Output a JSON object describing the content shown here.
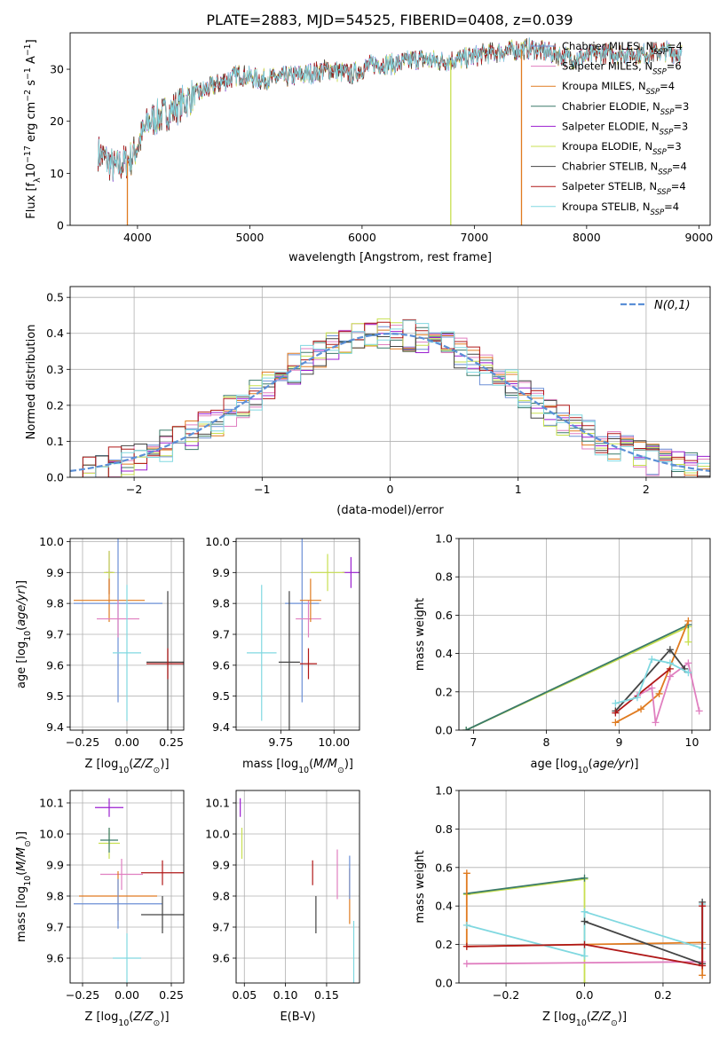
{
  "figure": {
    "title": "PLATE=2883, MJD=54525, FIBERID=0408, z=0.039"
  },
  "colors": {
    "Chabrier MILES": "#6b8fd6",
    "Salpeter MILES": "#e07fc0",
    "Kroupa MILES": "#e07b20",
    "Chabrier ELODIE": "#3b7a6a",
    "Salpeter ELODIE": "#9b1fd0",
    "Kroupa ELODIE": "#c8e050",
    "Chabrier STELIB": "#444444",
    "Salpeter STELIB": "#b01818",
    "Kroupa STELIB": "#80d8e0",
    "normal": "#5b8fd6"
  },
  "chart_data": [
    {
      "id": "spectrum",
      "type": "line",
      "xlabel": "wavelength [Angstrom, rest frame]",
      "ylabel": "Flux [f_λ10^-17 erg cm^-2 s^-1 A^-1]",
      "xlim": [
        3400,
        9100
      ],
      "ylim": [
        0,
        37
      ],
      "xticks": [
        4000,
        5000,
        6000,
        7000,
        8000,
        9000
      ],
      "yticks": [
        0,
        10,
        20,
        30
      ],
      "legend_position": "right",
      "series": [
        {
          "name": "Chabrier MILES, N_SSP=4",
          "label": "Chabrier MILES, N",
          "sub": "SSP",
          "suffix": "=4"
        },
        {
          "name": "Salpeter MILES, N_SSP=6",
          "label": "Salpeter MILES, N",
          "sub": "SSP",
          "suffix": "=6"
        },
        {
          "name": "Kroupa MILES, N_SSP=4",
          "label": "Kroupa MILES, N",
          "sub": "SSP",
          "suffix": "=4"
        },
        {
          "name": "Chabrier ELODIE, N_SSP=3",
          "label": "Chabrier ELODIE, N",
          "sub": "SSP",
          "suffix": "=3"
        },
        {
          "name": "Salpeter ELODIE, N_SSP=3",
          "label": "Salpeter ELODIE, N",
          "sub": "SSP",
          "suffix": "=3"
        },
        {
          "name": "Kroupa ELODIE, N_SSP=3",
          "label": "Kroupa ELODIE, N",
          "sub": "SSP",
          "suffix": "=3"
        },
        {
          "name": "Chabrier STELIB, N_SSP=4",
          "label": "Chabrier STELIB, N",
          "sub": "SSP",
          "suffix": "=4"
        },
        {
          "name": "Salpeter STELIB, N_SSP=4",
          "label": "Salpeter STELIB, N",
          "sub": "SSP",
          "suffix": "=4"
        },
        {
          "name": "Kroupa STELIB, N_SSP=4",
          "label": "Kroupa STELIB, N",
          "sub": "SSP",
          "suffix": "=4"
        }
      ],
      "continuum": {
        "x": [
          3650,
          3800,
          3950,
          4100,
          4300,
          4500,
          4700,
          4900,
          5100,
          5300,
          5500,
          5700,
          5900,
          6100,
          6300,
          6500,
          6700,
          6900,
          7100,
          7300,
          7500,
          7700,
          7900,
          8100,
          8300,
          8500,
          8700,
          8850
        ],
        "y": [
          14,
          11,
          13,
          20,
          22,
          25,
          27,
          29,
          28,
          28.5,
          29,
          30,
          29,
          31,
          31,
          32,
          31.5,
          32,
          33,
          33.5,
          34,
          33,
          32,
          33,
          33,
          33,
          33.5,
          33
        ]
      },
      "dropouts": [
        {
          "series": "Kroupa MILES",
          "x": 3910
        },
        {
          "series": "Kroupa ELODIE",
          "x": 6790
        },
        {
          "series": "Kroupa MILES",
          "x": 7420
        }
      ]
    },
    {
      "id": "residual-hist",
      "type": "histogram",
      "xlabel": "(data-model)/error",
      "ylabel": "Normed distribution",
      "xlim": [
        -2.5,
        2.5
      ],
      "ylim": [
        0,
        0.53
      ],
      "xticks": [
        -2,
        -1,
        0,
        1,
        2
      ],
      "yticks": [
        0.0,
        0.1,
        0.2,
        0.3,
        0.4,
        0.5
      ],
      "legend": {
        "label": "N(0,1)",
        "position": "top-right"
      },
      "bin_width": 0.1,
      "bin_start": -2.5,
      "series": [
        "Chabrier MILES",
        "Salpeter MILES",
        "Kroupa MILES",
        "Chabrier ELODIE",
        "Salpeter ELODIE",
        "Kroupa ELODIE",
        "Chabrier STELIB",
        "Salpeter STELIB",
        "Kroupa STELIB"
      ]
    },
    {
      "id": "age-vs-Z",
      "type": "scatter",
      "xlabel": "Z [log10(Z/Z⊙)]",
      "ylabel": "age [log10(age/yr)]",
      "xlim": [
        -0.32,
        0.32
      ],
      "ylim": [
        9.39,
        10.01
      ],
      "xticks": [
        -0.25,
        0.0,
        0.25
      ],
      "xtick_labels": [
        "−0.25",
        "0.00",
        "0.25"
      ],
      "yticks": [
        9.4,
        9.5,
        9.6,
        9.7,
        9.8,
        9.9,
        10.0
      ],
      "points": [
        {
          "series": "Salpeter ELODIE",
          "x": -0.1,
          "xerr": 0.02,
          "y": 9.9,
          "yerr": 0.07
        },
        {
          "series": "Kroupa ELODIE",
          "x": -0.1,
          "xerr": 0.03,
          "y": 9.9,
          "yerr": 0.07
        },
        {
          "series": "Kroupa MILES",
          "x": -0.1,
          "xerr": 0.2,
          "y": 9.81,
          "yerr": 0.07
        },
        {
          "series": "Chabrier MILES",
          "x": -0.05,
          "xerr": 0.25,
          "y": 9.8,
          "yerr": 0.32
        },
        {
          "series": "Salpeter MILES",
          "x": -0.05,
          "xerr": 0.12,
          "y": 9.75,
          "yerr": 0.06
        },
        {
          "series": "Kroupa STELIB",
          "x": 0.0,
          "xerr": 0.08,
          "y": 9.64,
          "yerr": 0.22
        },
        {
          "series": "Chabrier STELIB",
          "x": 0.23,
          "xerr": 0.12,
          "y": 9.61,
          "yerr": 0.23
        },
        {
          "series": "Salpeter STELIB",
          "x": 0.23,
          "xerr": 0.12,
          "y": 9.605,
          "yerr": 0.05
        }
      ]
    },
    {
      "id": "age-vs-mass",
      "type": "scatter",
      "xlabel": "mass [log10(M/M⊙)]",
      "ylabel": "",
      "xlim": [
        9.54,
        10.12
      ],
      "ylim": [
        9.39,
        10.01
      ],
      "xticks": [
        9.75,
        10.0
      ],
      "xtick_labels": [
        "9.75",
        "10.00"
      ],
      "yticks": [
        9.4,
        9.5,
        9.6,
        9.7,
        9.8,
        9.9,
        10.0
      ],
      "points": [
        {
          "series": "Salpeter ELODIE",
          "x": 10.08,
          "xerr": 0.04,
          "y": 9.9,
          "yerr": 0.05
        },
        {
          "series": "Kroupa ELODIE",
          "x": 9.97,
          "xerr": 0.08,
          "y": 9.9,
          "yerr": 0.06
        },
        {
          "series": "Chabrier MILES",
          "x": 9.85,
          "xerr": 0.08,
          "y": 9.8,
          "yerr": 0.32
        },
        {
          "series": "Salpeter MILES",
          "x": 9.88,
          "xerr": 0.06,
          "y": 9.75,
          "yerr": 0.06
        },
        {
          "series": "Kroupa MILES",
          "x": 9.89,
          "xerr": 0.05,
          "y": 9.81,
          "yerr": 0.07
        },
        {
          "series": "Kroupa STELIB",
          "x": 9.66,
          "xerr": 0.07,
          "y": 9.64,
          "yerr": 0.22
        },
        {
          "series": "Chabrier STELIB",
          "x": 9.79,
          "xerr": 0.05,
          "y": 9.61,
          "yerr": 0.23
        },
        {
          "series": "Salpeter STELIB",
          "x": 9.88,
          "xerr": 0.04,
          "y": 9.605,
          "yerr": 0.05
        }
      ]
    },
    {
      "id": "massweight-vs-age",
      "type": "line",
      "xlabel": "age [log10(age/yr)]",
      "ylabel": "mass weight",
      "xlim": [
        6.8,
        10.25
      ],
      "ylim": [
        0,
        1.0
      ],
      "xticks": [
        7,
        8,
        9,
        10
      ],
      "yticks": [
        0.0,
        0.2,
        0.4,
        0.6,
        0.8,
        1.0
      ],
      "series": [
        {
          "series": "Kroupa ELODIE",
          "x": [
            6.9,
            9.95,
            9.95
          ],
          "y": [
            0.0,
            0.54,
            0.46
          ]
        },
        {
          "series": "Chabrier ELODIE",
          "x": [
            6.9,
            9.95
          ],
          "y": [
            0.0,
            0.55
          ]
        },
        {
          "series": "Kroupa MILES",
          "x": [
            8.95,
            9.3,
            9.55,
            9.95
          ],
          "y": [
            0.04,
            0.11,
            0.19,
            0.57
          ]
        },
        {
          "series": "Salpeter MILES",
          "x": [
            9.25,
            9.45,
            9.5,
            9.7,
            9.95,
            10.1
          ],
          "y": [
            0.18,
            0.22,
            0.04,
            0.28,
            0.35,
            0.1
          ]
        },
        {
          "series": "Chabrier STELIB",
          "x": [
            8.95,
            9.7,
            9.9
          ],
          "y": [
            0.1,
            0.42,
            0.32
          ]
        },
        {
          "series": "Salpeter STELIB",
          "x": [
            8.95,
            9.7
          ],
          "y": [
            0.09,
            0.32
          ]
        },
        {
          "series": "Kroupa STELIB",
          "x": [
            8.95,
            9.25,
            9.45,
            9.7,
            9.95
          ],
          "y": [
            0.14,
            0.17,
            0.37,
            0.35,
            0.3
          ]
        }
      ]
    },
    {
      "id": "mass-vs-Z",
      "type": "scatter",
      "xlabel": "Z [log10(Z/Z⊙)]",
      "ylabel": "mass [log10(M/M⊙)]",
      "xlim": [
        -0.32,
        0.32
      ],
      "ylim": [
        9.52,
        10.14
      ],
      "xticks": [
        -0.25,
        0.0,
        0.25
      ],
      "xtick_labels": [
        "−0.25",
        "0.00",
        "0.25"
      ],
      "yticks": [
        9.6,
        9.7,
        9.8,
        9.9,
        10.0,
        10.1
      ],
      "points": [
        {
          "series": "Salpeter ELODIE",
          "x": -0.1,
          "xerr": 0.08,
          "y": 10.085,
          "yerr": 0.03
        },
        {
          "series": "Kroupa ELODIE",
          "x": -0.1,
          "xerr": 0.06,
          "y": 9.97,
          "yerr": 0.05
        },
        {
          "series": "Chabrier ELODIE",
          "x": -0.1,
          "xerr": 0.05,
          "y": 9.98,
          "yerr": 0.04
        },
        {
          "series": "Salpeter MILES",
          "x": -0.03,
          "xerr": 0.12,
          "y": 9.87,
          "yerr": 0.05
        },
        {
          "series": "Kroupa MILES",
          "x": -0.05,
          "xerr": 0.22,
          "y": 9.8,
          "yerr": 0.08
        },
        {
          "series": "Chabrier MILES",
          "x": -0.05,
          "xerr": 0.25,
          "y": 9.775,
          "yerr": 0.08
        },
        {
          "series": "Kroupa STELIB",
          "x": 0.0,
          "xerr": 0.08,
          "y": 9.6,
          "yerr": 0.08
        },
        {
          "series": "Chabrier STELIB",
          "x": 0.2,
          "xerr": 0.12,
          "y": 9.74,
          "yerr": 0.06
        },
        {
          "series": "Salpeter STELIB",
          "x": 0.2,
          "xerr": 0.12,
          "y": 9.875,
          "yerr": 0.04
        }
      ]
    },
    {
      "id": "mass-vs-ebv",
      "type": "errorbar",
      "xlabel": "E(B-V)",
      "ylabel": "",
      "xlim": [
        0.04,
        0.19
      ],
      "ylim": [
        9.52,
        10.14
      ],
      "xticks": [
        0.05,
        0.1,
        0.15
      ],
      "xtick_labels": [
        "0.05",
        "0.10",
        "0.15"
      ],
      "yticks": [
        9.6,
        9.7,
        9.8,
        9.9,
        10.0,
        10.1
      ],
      "points": [
        {
          "series": "Salpeter ELODIE",
          "x": 0.045,
          "y": 10.085,
          "yerr": 0.03
        },
        {
          "series": "Kroupa ELODIE",
          "x": 0.047,
          "y": 9.97,
          "yerr": 0.05
        },
        {
          "series": "Salpeter STELIB",
          "x": 0.133,
          "y": 9.875,
          "yerr": 0.04
        },
        {
          "series": "Chabrier STELIB",
          "x": 0.137,
          "y": 9.74,
          "yerr": 0.06
        },
        {
          "series": "Salpeter MILES",
          "x": 0.163,
          "y": 9.87,
          "yerr": 0.08
        },
        {
          "series": "Kroupa MILES",
          "x": 0.178,
          "y": 9.8,
          "yerr": 0.09
        },
        {
          "series": "Chabrier MILES",
          "x": 0.178,
          "y": 9.86,
          "yerr": 0.07
        },
        {
          "series": "Kroupa STELIB",
          "x": 0.183,
          "y": 9.6,
          "yerr": 0.12
        }
      ]
    },
    {
      "id": "massweight-vs-Z",
      "type": "line",
      "xlabel": "Z [log10(Z/Z⊙)]",
      "ylabel": "mass weight",
      "xlim": [
        -0.32,
        0.32
      ],
      "ylim": [
        0,
        1.0
      ],
      "xticks": [
        -0.2,
        0.0,
        0.2
      ],
      "xtick_labels": [
        "−0.2",
        "0.0",
        "0.2"
      ],
      "yticks": [
        0.0,
        0.2,
        0.4,
        0.6,
        0.8,
        1.0
      ],
      "series": [
        {
          "series": "Kroupa ELODIE",
          "x": [
            -0.3,
            0.0,
            0.0
          ],
          "y": [
            0.46,
            0.54,
            0.0
          ]
        },
        {
          "series": "Chabrier ELODIE",
          "x": [
            -0.3,
            0.0
          ],
          "y": [
            0.465,
            0.545
          ]
        },
        {
          "series": "Kroupa MILES",
          "x": [
            -0.3,
            -0.3,
            0.3,
            0.3
          ],
          "y": [
            0.57,
            0.19,
            0.21,
            0.04
          ]
        },
        {
          "series": "Salpeter MILES",
          "x": [
            -0.3,
            0.3
          ],
          "y": [
            0.1,
            0.11
          ]
        },
        {
          "series": "Kroupa STELIB",
          "x": [
            -0.3,
            0.0,
            0.0,
            0.3,
            0.3
          ],
          "y": [
            0.3,
            0.14,
            0.37,
            0.18,
            0.41
          ]
        },
        {
          "series": "Chabrier STELIB",
          "x": [
            0.0,
            0.3,
            0.3
          ],
          "y": [
            0.32,
            0.1,
            0.42
          ]
        },
        {
          "series": "Salpeter STELIB",
          "x": [
            -0.3,
            0.0,
            0.3,
            0.3
          ],
          "y": [
            0.19,
            0.2,
            0.09,
            0.4
          ]
        }
      ]
    }
  ]
}
